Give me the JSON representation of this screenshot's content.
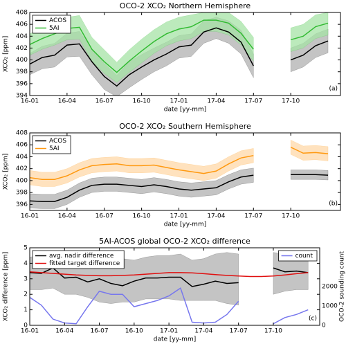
{
  "chart_data": [
    {
      "type": "line",
      "title": "OCO-2 XCO₂ Northern Hemisphere",
      "x_label": "date [yy-mm]",
      "y_label": "XCO₂ [ppm]",
      "annotation": "(a)",
      "legend": "upper left",
      "x": [
        "16-01",
        "16-02",
        "16-03",
        "16-04",
        "16-05",
        "16-06",
        "16-07",
        "16-08",
        "16-09",
        "16-10",
        "16-11",
        "16-12",
        "17-01",
        "17-02",
        "17-03",
        "17-04",
        "17-05",
        "17-06",
        "17-07",
        "17-08",
        "17-09",
        "17-10",
        "17-11",
        "17-12",
        "18-01"
      ],
      "xlim": [
        "16-01",
        "18-02"
      ],
      "xticks": [
        "16-01",
        "16-04",
        "16-07",
        "16-10",
        "17-01",
        "17-04",
        "17-07",
        "17-10"
      ],
      "ylim": [
        394,
        408
      ],
      "yticks": [
        394,
        396,
        398,
        400,
        402,
        404,
        406,
        408
      ],
      "series": [
        {
          "name": "ACOS",
          "color": "#000000",
          "band_color": "#b0b0b0",
          "values": [
            399.3,
            400.4,
            400.8,
            402.5,
            402.7,
            399.7,
            397.2,
            395.6,
            397.5,
            398.8,
            400.0,
            401.0,
            402.2,
            402.5,
            404.7,
            405.4,
            404.7,
            403.0,
            399.0,
            null,
            null,
            400.0,
            400.8,
            402.4,
            403.2
          ],
          "lower": [
            397.5,
            398.5,
            398.8,
            400.5,
            400.6,
            397.5,
            395.0,
            393.8,
            395.3,
            396.7,
            398.0,
            399.0,
            400.3,
            400.6,
            402.8,
            403.6,
            402.8,
            401.0,
            397.0,
            null,
            null,
            398.0,
            398.8,
            400.4,
            401.2
          ],
          "upper": [
            401.1,
            402.3,
            402.8,
            404.5,
            404.8,
            401.9,
            399.4,
            397.4,
            399.7,
            400.9,
            402.0,
            403.0,
            404.1,
            404.4,
            406.6,
            407.2,
            406.6,
            405.0,
            401.0,
            null,
            null,
            402.0,
            402.8,
            404.4,
            405.2
          ]
        },
        {
          "name": "5AI",
          "color": "#33bb33",
          "band_color": "#a6e3a6",
          "values": [
            402.6,
            403.6,
            404.4,
            405.3,
            405.5,
            401.8,
            399.7,
            397.9,
            399.8,
            401.5,
            403.1,
            404.4,
            405.2,
            405.6,
            406.7,
            406.7,
            406.2,
            404.5,
            401.8,
            null,
            null,
            403.4,
            404.0,
            405.6,
            406.2
          ],
          "lower": [
            400.8,
            401.8,
            402.5,
            403.4,
            403.5,
            399.8,
            397.7,
            396.2,
            397.9,
            399.5,
            401.1,
            402.4,
            403.2,
            403.6,
            404.8,
            404.8,
            404.2,
            402.5,
            399.8,
            null,
            null,
            401.4,
            402.0,
            403.6,
            404.2
          ],
          "upper": [
            404.4,
            405.4,
            406.3,
            407.2,
            407.5,
            403.8,
            401.7,
            399.6,
            401.7,
            403.5,
            405.1,
            406.4,
            407.2,
            407.6,
            408.0,
            408.0,
            408.0,
            406.5,
            403.8,
            null,
            null,
            405.4,
            406.0,
            407.6,
            408.0
          ]
        }
      ]
    },
    {
      "type": "line",
      "title": "OCO-2 XCO₂ Southern Hemisphere",
      "x_label": "date [yy-mm]",
      "y_label": "XCO₂ [ppm]",
      "annotation": "(b)",
      "legend": "upper left",
      "x": [
        "16-01",
        "16-02",
        "16-03",
        "16-04",
        "16-05",
        "16-06",
        "16-07",
        "16-08",
        "16-09",
        "16-10",
        "16-11",
        "16-12",
        "17-01",
        "17-02",
        "17-03",
        "17-04",
        "17-05",
        "17-06",
        "17-07",
        "17-08",
        "17-09",
        "17-10",
        "17-11",
        "17-12",
        "18-01"
      ],
      "xlim": [
        "16-01",
        "18-02"
      ],
      "xticks": [
        "16-01",
        "16-04",
        "16-07",
        "16-10",
        "17-01",
        "17-04",
        "17-07",
        "17-10"
      ],
      "ylim": [
        395,
        408
      ],
      "yticks": [
        396,
        398,
        400,
        402,
        404,
        406,
        408
      ],
      "series": [
        {
          "name": "ACOS",
          "color": "#000000",
          "band_color": "#b0b0b0",
          "values": [
            396.6,
            396.5,
            396.5,
            397.2,
            398.4,
            399.2,
            399.4,
            399.4,
            399.2,
            399.0,
            399.3,
            399.0,
            398.6,
            398.4,
            398.6,
            398.8,
            399.8,
            400.6,
            400.9,
            null,
            null,
            401.0,
            401.0,
            401.0,
            400.9
          ],
          "lower": [
            395.4,
            395.3,
            395.3,
            396.0,
            397.2,
            398.0,
            398.2,
            398.2,
            398.0,
            397.8,
            398.1,
            397.8,
            397.4,
            397.2,
            397.4,
            397.6,
            398.6,
            399.4,
            399.7,
            null,
            null,
            400.2,
            400.2,
            400.2,
            400.1
          ],
          "upper": [
            397.8,
            397.7,
            397.7,
            398.4,
            399.6,
            400.4,
            400.6,
            400.6,
            400.4,
            400.2,
            400.5,
            400.2,
            399.8,
            399.6,
            399.8,
            400.0,
            401.0,
            401.8,
            402.1,
            null,
            null,
            401.8,
            401.8,
            401.8,
            401.7
          ]
        },
        {
          "name": "5AI",
          "color": "#ff9910",
          "band_color": "#ffd8a8",
          "values": [
            400.5,
            400.2,
            400.2,
            400.8,
            401.8,
            402.5,
            402.7,
            402.8,
            402.5,
            402.5,
            402.6,
            402.2,
            401.8,
            401.5,
            401.2,
            401.6,
            402.8,
            403.8,
            404.2,
            null,
            null,
            405.6,
            404.6,
            404.7,
            404.5
          ],
          "lower": [
            399.3,
            399.0,
            399.0,
            399.6,
            400.6,
            401.3,
            401.5,
            401.6,
            401.3,
            401.3,
            401.4,
            401.0,
            400.6,
            400.3,
            400.0,
            400.4,
            401.6,
            402.6,
            403.0,
            null,
            null,
            404.4,
            403.4,
            403.5,
            403.3
          ],
          "upper": [
            401.7,
            401.4,
            401.4,
            402.0,
            403.0,
            403.7,
            403.9,
            404.0,
            403.7,
            403.7,
            403.8,
            403.4,
            403.0,
            402.7,
            402.4,
            402.8,
            404.0,
            405.0,
            405.4,
            null,
            null,
            406.8,
            405.8,
            405.9,
            405.7
          ]
        }
      ]
    },
    {
      "type": "line",
      "title": "5AI-ACOS global OCO-2 XCO₂ difference",
      "x_label": "date [yy-mm]",
      "y_label": "XCO₂ difference [ppm]",
      "y2_label": "OCO-2 sounding count",
      "annotation": "(c)",
      "legend": "upper left",
      "legend2": "upper right",
      "x": [
        "16-01",
        "16-02",
        "16-03",
        "16-04",
        "16-05",
        "16-06",
        "16-07",
        "16-08",
        "16-09",
        "16-10",
        "16-11",
        "16-12",
        "17-01",
        "17-02",
        "17-03",
        "17-04",
        "17-05",
        "17-06",
        "17-07",
        "17-08",
        "17-09",
        "17-10",
        "17-11",
        "17-12",
        "18-01"
      ],
      "xlim": [
        "16-01",
        "18-02"
      ],
      "xticks": [
        "16-01",
        "16-04",
        "16-07",
        "16-10",
        "17-01",
        "17-04",
        "17-07",
        "17-10"
      ],
      "ylim": [
        0,
        5
      ],
      "yticks": [
        0,
        1,
        2,
        3,
        4,
        5
      ],
      "y2lim": [
        0,
        4000
      ],
      "y2ticks": [
        0,
        1000,
        2000
      ],
      "series": [
        {
          "name": "avg. nadir difference",
          "color": "#000000",
          "band_color": "#b0b0b0",
          "values": [
            3.4,
            3.35,
            3.7,
            3.05,
            3.1,
            2.8,
            3.0,
            2.7,
            2.55,
            2.85,
            3.05,
            3.05,
            3.1,
            3.1,
            2.5,
            2.65,
            2.85,
            2.7,
            2.75,
            null,
            null,
            3.7,
            3.45,
            3.5,
            3.4
          ],
          "lower": [
            2.3,
            2.3,
            2.4,
            2.0,
            2.0,
            1.8,
            1.5,
            1.4,
            1.5,
            1.5,
            1.7,
            1.7,
            1.7,
            1.6,
            1.6,
            1.6,
            1.6,
            1.4,
            1.3,
            null,
            null,
            2.0,
            2.2,
            2.3,
            2.3
          ],
          "upper": [
            4.4,
            4.5,
            4.6,
            4.4,
            4.4,
            4.2,
            4.2,
            4.3,
            4.3,
            4.2,
            4.4,
            4.5,
            4.5,
            4.6,
            4.2,
            4.3,
            4.6,
            4.7,
            4.6,
            null,
            null,
            4.7,
            4.6,
            4.6,
            4.6
          ]
        },
        {
          "name": "fitted target difference",
          "color": "#e01010",
          "values": [
            3.45,
            3.4,
            3.35,
            3.3,
            3.25,
            3.22,
            3.2,
            3.2,
            3.22,
            3.25,
            3.3,
            3.35,
            3.4,
            3.4,
            3.38,
            3.33,
            3.27,
            3.22,
            3.18,
            3.15,
            3.15,
            3.18,
            3.25,
            3.33,
            3.4
          ]
        },
        {
          "name": "count",
          "color": "#7777ee",
          "axis": "y2",
          "values": [
            1440,
            1040,
            320,
            120,
            80,
            960,
            1760,
            1600,
            1600,
            960,
            1120,
            1280,
            1520,
            1920,
            160,
            120,
            160,
            560,
            1240,
            null,
            null,
            80,
            400,
            560,
            800
          ]
        }
      ]
    }
  ]
}
